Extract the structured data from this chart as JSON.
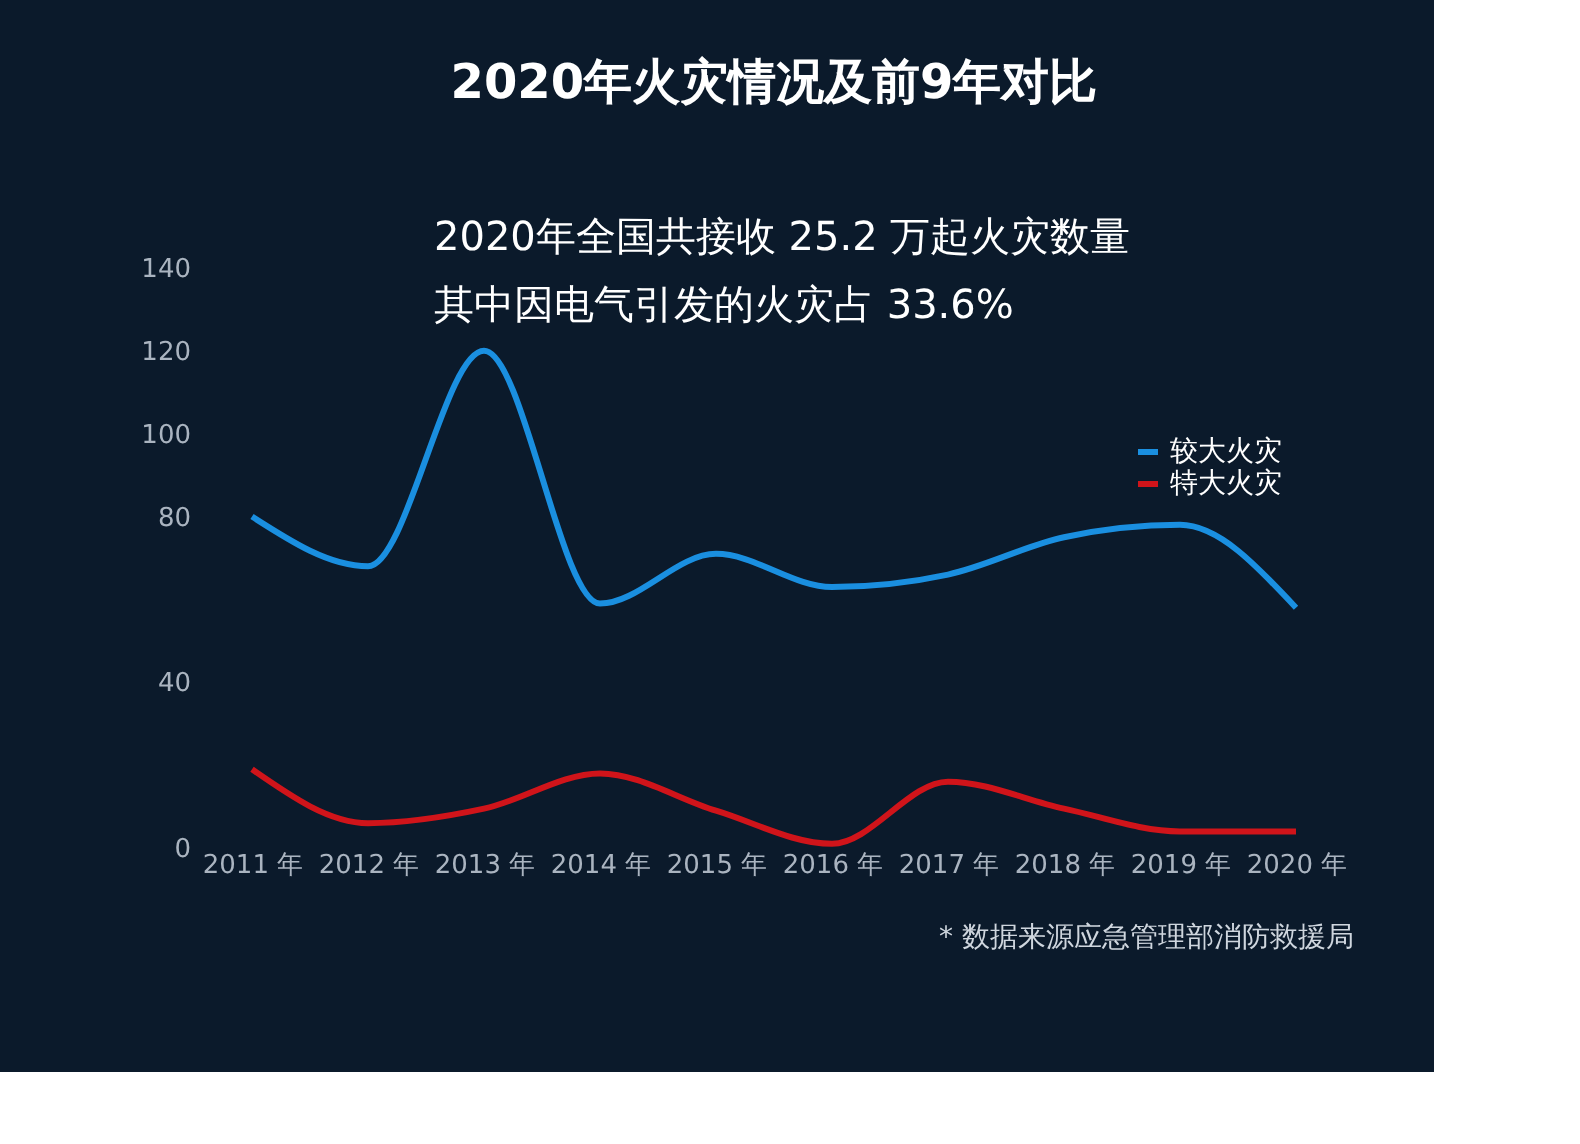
{
  "chart_data": {
    "type": "line",
    "title": "2020年火灾情况及前9年对比",
    "categories": [
      "2011 年",
      "2012 年",
      "2013 年",
      "2014 年",
      "2015 年",
      "2016 年",
      "2017 年",
      "2018 年",
      "2019 年",
      "2020 年"
    ],
    "series": [
      {
        "name": "较大火灾",
        "color": "#1a8fe0",
        "values": [
          80,
          68,
          120,
          59,
          71,
          63,
          66,
          75,
          78,
          58
        ]
      },
      {
        "name": "特大火灾",
        "color": "#d0141a",
        "values": [
          19,
          6,
          9.5,
          18,
          9,
          1,
          16,
          9.5,
          4,
          4
        ]
      }
    ],
    "ylim": [
      0,
      140
    ],
    "yticks": [
      0,
      40,
      80,
      100,
      120,
      140
    ],
    "annotations": [
      "2020年全国共接收 25.2 万起火灾数量",
      "其中因电气引发的火灾占 33.6%",
      "* 数据来源应急管理部消防救援局"
    ],
    "legend": "right",
    "grid": false,
    "marker": "none",
    "line_style": "solid"
  }
}
